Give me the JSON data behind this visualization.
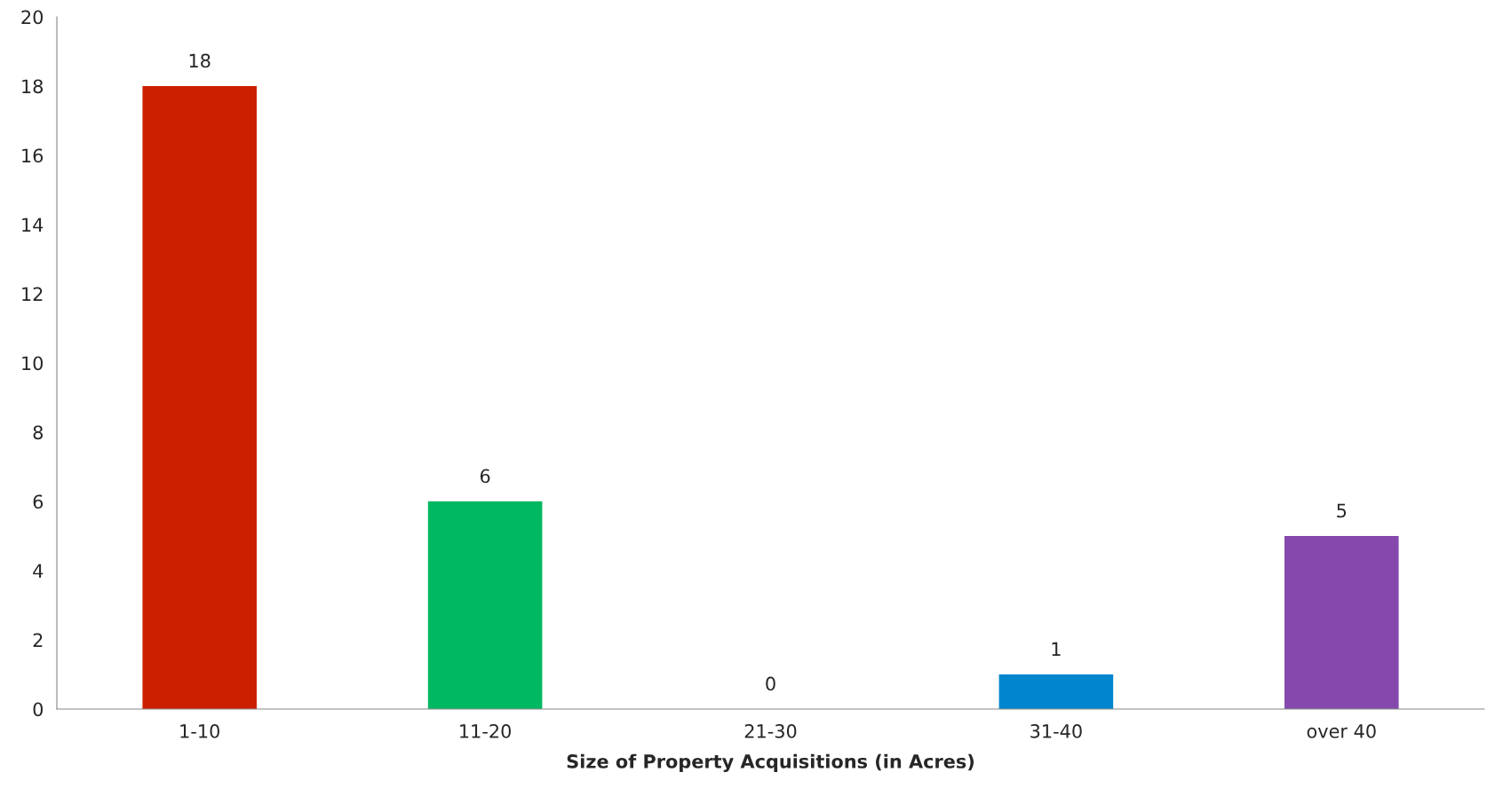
{
  "chart_data": {
    "type": "bar",
    "xlabel": "Size of Property Acquisitions (in Acres)",
    "categories": [
      "1-10",
      "11-20",
      "21-30",
      "31-40",
      "over 40"
    ],
    "values": [
      18,
      6,
      0,
      1,
      5
    ],
    "colors": [
      "#cc1f00",
      "#00b862",
      "#0085cf",
      "#0085cf",
      "#8549ad"
    ],
    "ylim": [
      0,
      20
    ],
    "yticks": [
      0,
      2,
      4,
      6,
      8,
      10,
      12,
      14,
      16,
      18,
      20
    ],
    "data_labels": true,
    "grid": false,
    "legend": false
  }
}
